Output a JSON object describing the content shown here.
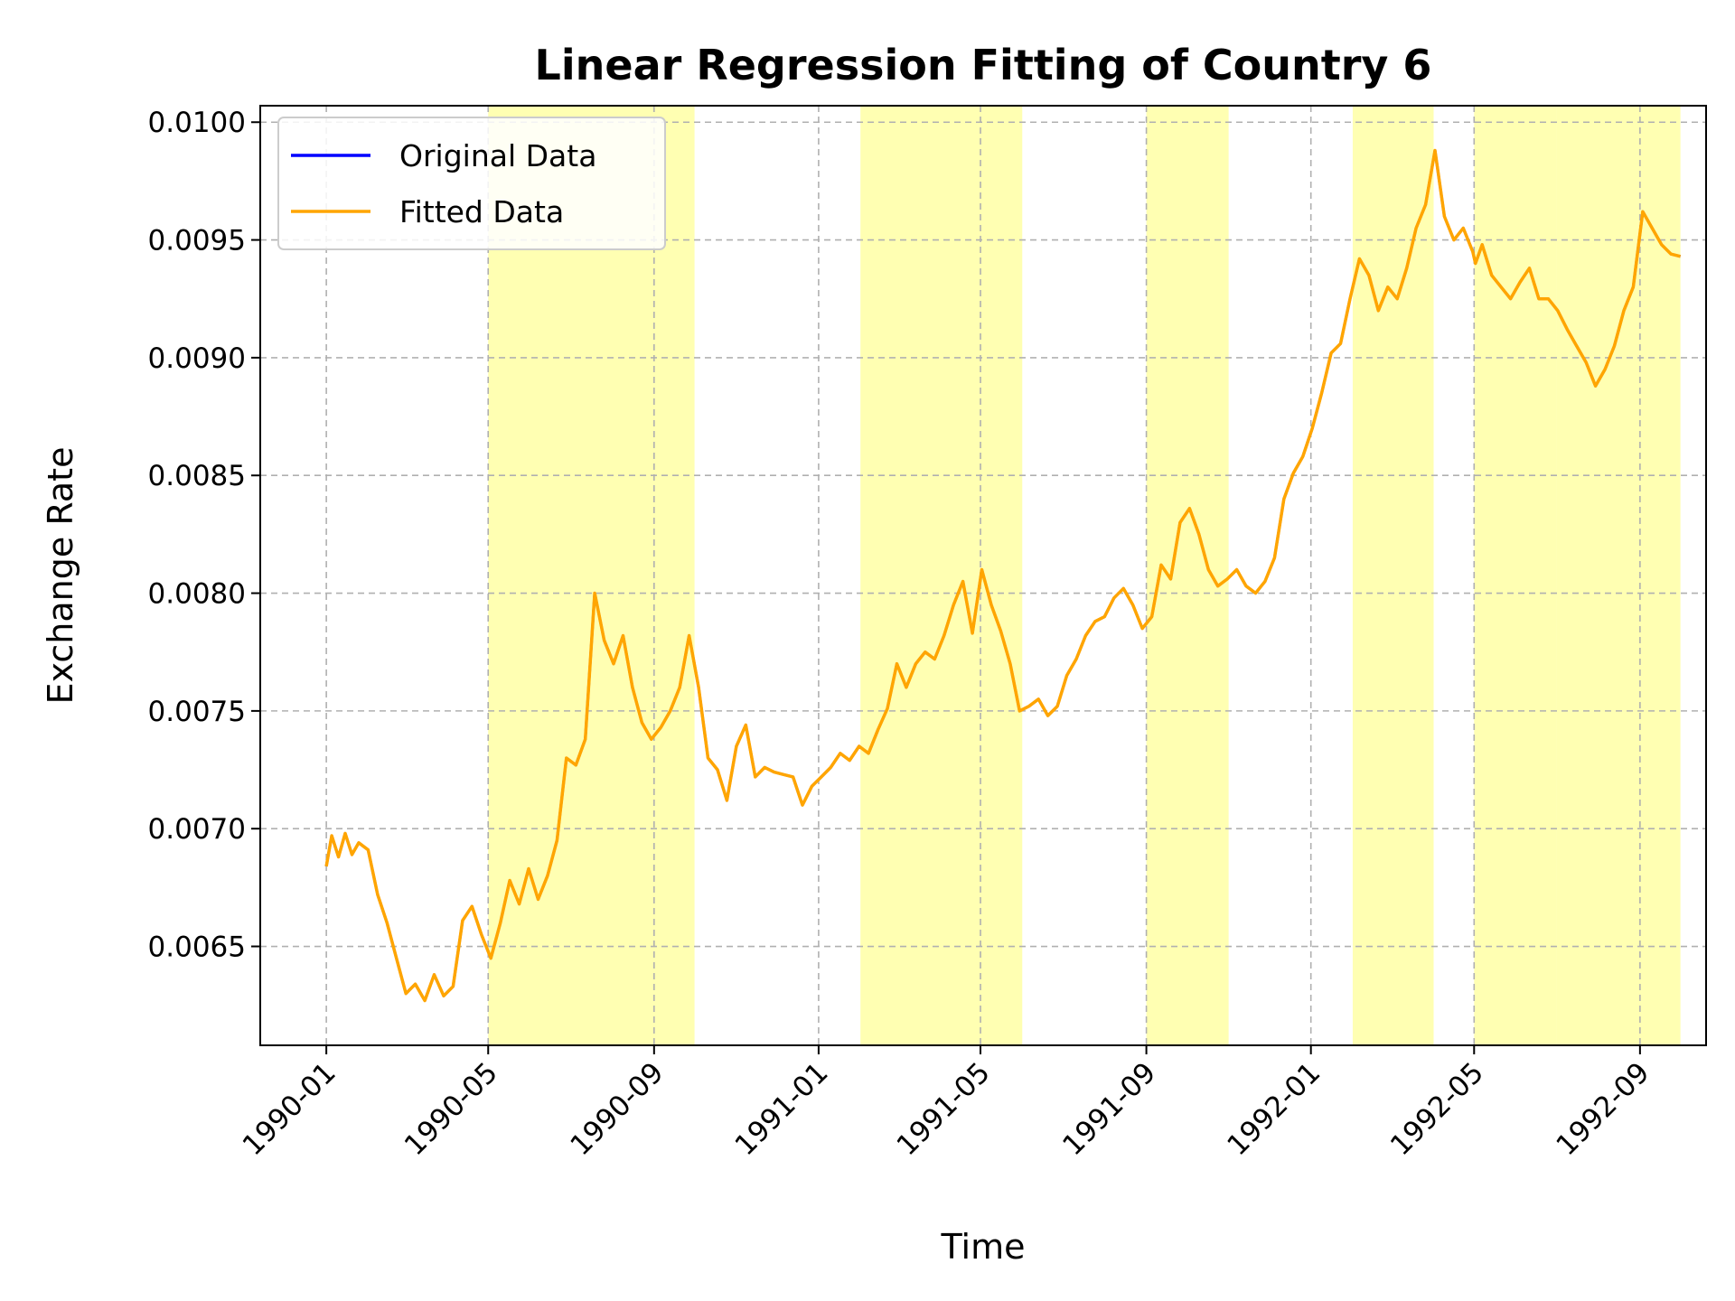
{
  "chart_data": {
    "type": "line",
    "title": "Linear Regression Fitting of Country 6",
    "xlabel": "Time",
    "ylabel": "Exchange Rate",
    "x_range": [
      "1989-11-13",
      "1992-10-20"
    ],
    "ylim": [
      0.00608,
      0.01007
    ],
    "x_ticks": [
      "1990-01",
      "1990-05",
      "1990-09",
      "1991-01",
      "1991-05",
      "1991-09",
      "1992-01",
      "1992-05",
      "1992-09"
    ],
    "y_ticks": [
      "0.0065",
      "0.0070",
      "0.0075",
      "0.0080",
      "0.0085",
      "0.0090",
      "0.0095",
      "0.0100"
    ],
    "grid": true,
    "legend_position": "top-left",
    "colors": {
      "original": "#0000ff",
      "fitted": "#ffa500",
      "highlight": "#ffff00"
    },
    "shaded_periods": [
      [
        "1990-05-01",
        "1990-10-01"
      ],
      [
        "1991-02-01",
        "1991-06-01"
      ],
      [
        "1991-09-01",
        "1991-11-01"
      ],
      [
        "1992-02-01",
        "1992-04-01"
      ],
      [
        "1992-05-01",
        "1992-07-01"
      ],
      [
        "1992-07-01",
        "1992-10-01"
      ]
    ],
    "series": [
      {
        "name": "Original Data",
        "x": [
          "1990-01-01",
          "1990-01-05",
          "1990-01-10",
          "1990-01-15",
          "1990-01-20",
          "1990-01-25",
          "1990-02-01",
          "1990-02-08",
          "1990-02-15",
          "1990-02-22",
          "1990-03-01",
          "1990-03-08",
          "1990-03-15",
          "1990-03-22",
          "1990-03-29",
          "1990-04-05",
          "1990-04-12",
          "1990-04-19",
          "1990-04-26",
          "1990-05-03",
          "1990-05-10",
          "1990-05-17",
          "1990-05-24",
          "1990-05-31",
          "1990-06-07",
          "1990-06-14",
          "1990-06-21",
          "1990-06-28",
          "1990-07-05",
          "1990-07-12",
          "1990-07-19",
          "1990-07-26",
          "1990-08-02",
          "1990-08-09",
          "1990-08-16",
          "1990-08-23",
          "1990-08-30",
          "1990-09-06",
          "1990-09-13",
          "1990-09-20",
          "1990-09-27",
          "1990-10-04",
          "1990-10-11",
          "1990-10-18",
          "1990-10-25",
          "1990-11-01",
          "1990-11-08",
          "1990-11-15",
          "1990-11-22",
          "1990-11-29",
          "1990-12-06",
          "1990-12-13",
          "1990-12-20",
          "1990-12-27",
          "1991-01-03",
          "1991-01-10",
          "1991-01-17",
          "1991-01-24",
          "1991-01-31",
          "1991-02-07",
          "1991-02-14",
          "1991-02-21",
          "1991-02-28",
          "1991-03-07",
          "1991-03-14",
          "1991-03-21",
          "1991-03-28",
          "1991-04-04",
          "1991-04-11",
          "1991-04-18",
          "1991-04-25",
          "1991-05-02",
          "1991-05-09",
          "1991-05-16",
          "1991-05-23",
          "1991-05-30",
          "1991-06-06",
          "1991-06-13",
          "1991-06-20",
          "1991-06-27",
          "1991-07-04",
          "1991-07-11",
          "1991-07-18",
          "1991-07-25",
          "1991-08-01",
          "1991-08-08",
          "1991-08-15",
          "1991-08-22",
          "1991-08-29",
          "1991-09-05",
          "1991-09-12",
          "1991-09-19",
          "1991-09-26",
          "1991-10-03",
          "1991-10-10",
          "1991-10-17",
          "1991-10-24",
          "1991-10-31",
          "1991-11-07",
          "1991-11-14",
          "1991-11-21",
          "1991-11-28",
          "1991-12-05",
          "1991-12-12",
          "1991-12-19",
          "1991-12-26",
          "1992-01-02",
          "1992-01-09",
          "1992-01-16",
          "1992-01-23",
          "1992-01-30",
          "1992-02-06",
          "1992-02-13",
          "1992-02-20",
          "1992-02-27",
          "1992-03-05",
          "1992-03-12",
          "1992-03-19",
          "1992-03-26",
          "1992-04-02",
          "1992-04-09",
          "1992-04-16",
          "1992-04-23",
          "1992-04-30",
          "1992-05-02",
          "1992-05-07",
          "1992-05-14",
          "1992-05-21",
          "1992-05-28",
          "1992-06-04",
          "1992-06-11",
          "1992-06-18",
          "1992-06-25",
          "1992-07-02",
          "1992-07-09",
          "1992-07-16",
          "1992-07-23",
          "1992-07-30",
          "1992-08-06",
          "1992-08-13",
          "1992-08-20",
          "1992-08-27",
          "1992-09-03",
          "1992-09-10",
          "1992-09-17",
          "1992-09-24",
          "1992-10-01"
        ],
        "values": [
          0.00684,
          0.00697,
          0.00688,
          0.00698,
          0.00689,
          0.00694,
          0.00691,
          0.00672,
          0.0066,
          0.00645,
          0.0063,
          0.00634,
          0.00627,
          0.00638,
          0.00629,
          0.00633,
          0.00661,
          0.00667,
          0.00655,
          0.00645,
          0.0066,
          0.00678,
          0.00668,
          0.00683,
          0.0067,
          0.0068,
          0.00695,
          0.0073,
          0.00727,
          0.00738,
          0.008,
          0.0078,
          0.0077,
          0.00782,
          0.0076,
          0.00745,
          0.00738,
          0.00743,
          0.0075,
          0.0076,
          0.00782,
          0.0076,
          0.0073,
          0.00725,
          0.00712,
          0.00735,
          0.00744,
          0.00722,
          0.00726,
          0.00724,
          0.00723,
          0.00722,
          0.0071,
          0.00718,
          0.00722,
          0.00726,
          0.00732,
          0.00729,
          0.00735,
          0.00732,
          0.00742,
          0.00751,
          0.0077,
          0.0076,
          0.0077,
          0.00775,
          0.00772,
          0.00782,
          0.00795,
          0.00805,
          0.00783,
          0.0081,
          0.00795,
          0.00784,
          0.0077,
          0.0075,
          0.00752,
          0.00755,
          0.00748,
          0.00752,
          0.00765,
          0.00772,
          0.00782,
          0.00788,
          0.0079,
          0.00798,
          0.00802,
          0.00795,
          0.00785,
          0.0079,
          0.00812,
          0.00806,
          0.0083,
          0.00836,
          0.00825,
          0.0081,
          0.00803,
          0.00806,
          0.0081,
          0.00803,
          0.008,
          0.00805,
          0.00815,
          0.0084,
          0.00851,
          0.00858,
          0.0087,
          0.00885,
          0.00902,
          0.00906,
          0.00925,
          0.00942,
          0.00935,
          0.0092,
          0.0093,
          0.00925,
          0.00938,
          0.00955,
          0.00965,
          0.00988,
          0.0096,
          0.0095,
          0.00955,
          0.00945,
          0.0094,
          0.00948,
          0.00935,
          0.0093,
          0.00925,
          0.00932,
          0.00938,
          0.00925,
          0.00925,
          0.0092,
          0.00912,
          0.00905,
          0.00898,
          0.00888,
          0.00895,
          0.00905,
          0.0092,
          0.0093,
          0.00962,
          0.00955,
          0.00948,
          0.00944,
          0.00943
        ]
      },
      {
        "name": "Fitted Data",
        "values_same_as": "Original Data"
      }
    ]
  }
}
